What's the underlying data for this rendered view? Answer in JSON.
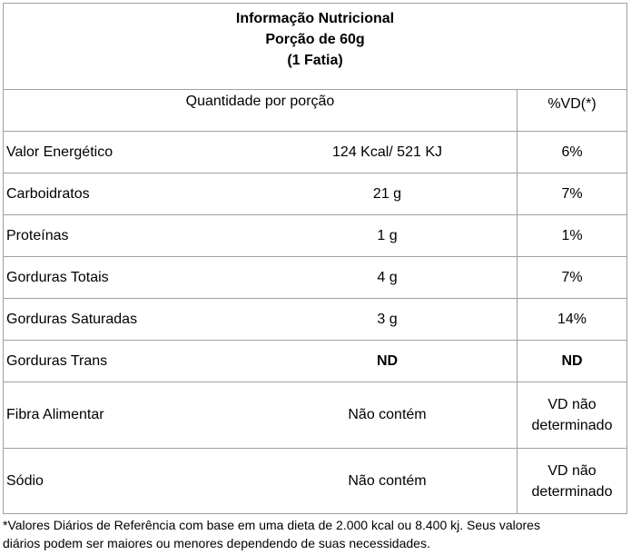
{
  "title": {
    "line1": "Informação Nutricional",
    "line2": "Porção de 60g",
    "line3": "(1 Fatia)"
  },
  "header": {
    "quantity": "Quantidade por porção",
    "vd": "%VD(*)"
  },
  "rows": [
    {
      "name": "Valor Energético",
      "amount": "124 Kcal/ 521 KJ",
      "vd": "6%"
    },
    {
      "name": "Carboidratos",
      "amount": "21 g",
      "vd": "7%"
    },
    {
      "name": "Proteínas",
      "amount": "1 g",
      "vd": "1%"
    },
    {
      "name": "Gorduras Totais",
      "amount": "4 g",
      "vd": "7%"
    },
    {
      "name": "Gorduras Saturadas",
      "amount": "3 g",
      "vd": "14%"
    },
    {
      "name": "Gorduras Trans",
      "amount": "ND",
      "vd": "ND"
    },
    {
      "name": "Fibra Alimentar",
      "amount": "Não contém",
      "vd_line1": "VD não",
      "vd_line2": "determinado"
    },
    {
      "name": "Sódio",
      "amount": "Não contém",
      "vd_line1": "VD não",
      "vd_line2": "determinado"
    }
  ],
  "footnote": {
    "line1": "*Valores Diários de Referência com base em uma dieta de 2.000 kcal ou 8.400 kj. Seus valores",
    "line2": "diários podem ser maiores ou menores dependendo de suas necessidades."
  }
}
